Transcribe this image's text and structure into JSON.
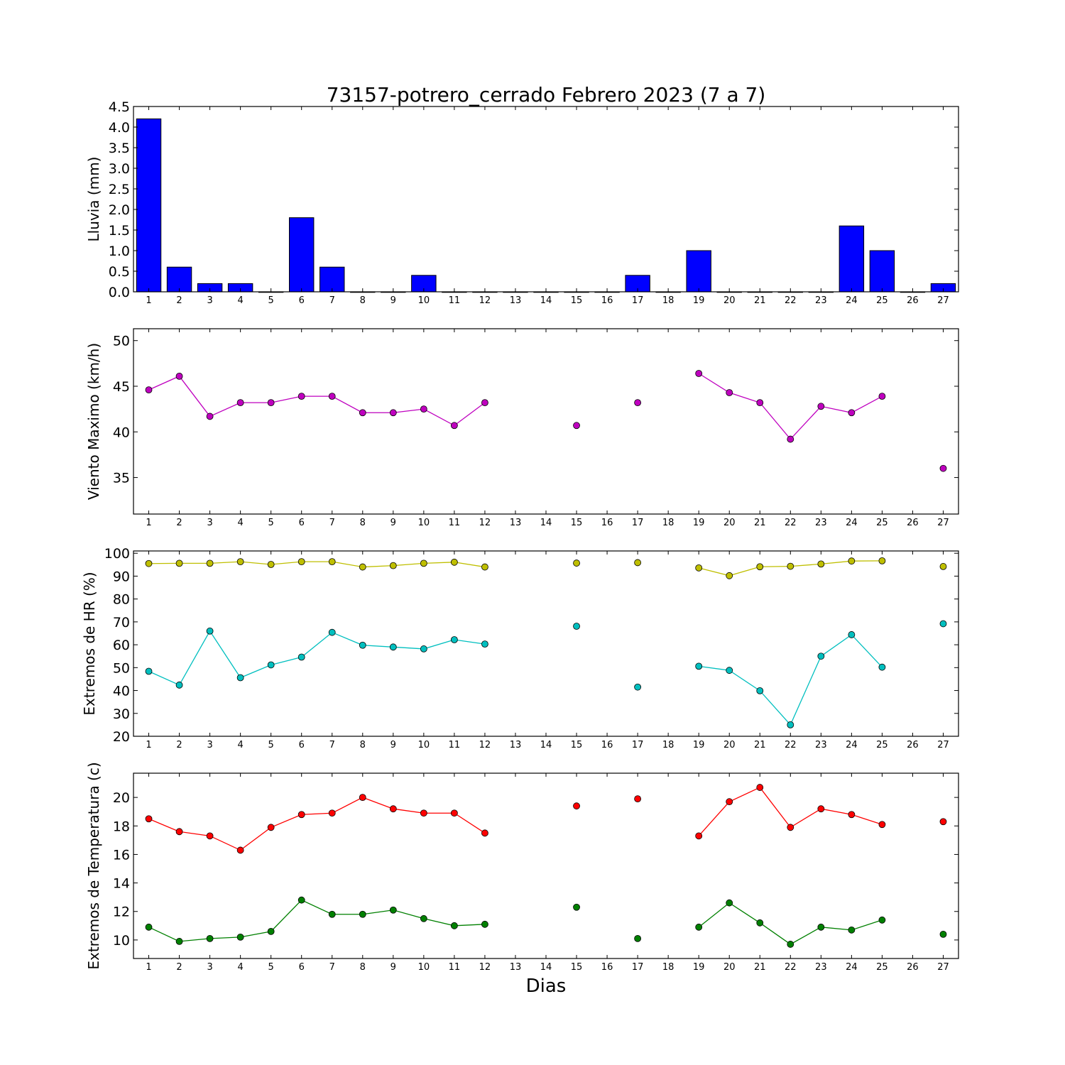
{
  "figure": {
    "title": "73157-potrero_cerrado Febrero 2023  (7 a 7)",
    "xlabel": "Dias"
  },
  "chart_data": [
    {
      "type": "bar",
      "name": "lluvia",
      "ylabel": "Lluvia (mm)",
      "ylim": [
        0,
        4.5
      ],
      "yticks": [
        "0.0",
        "0.5",
        "1.0",
        "1.5",
        "2.0",
        "2.5",
        "3.0",
        "3.5",
        "4.0",
        "4.5"
      ],
      "xlim": [
        0.5,
        27.5
      ],
      "x": [
        1,
        2,
        3,
        4,
        5,
        6,
        7,
        8,
        9,
        10,
        11,
        12,
        13,
        14,
        15,
        16,
        17,
        18,
        19,
        20,
        21,
        22,
        23,
        24,
        25,
        26,
        27
      ],
      "color": "#0000ff",
      "values": [
        4.2,
        0.6,
        0.2,
        0.2,
        0,
        1.8,
        0.6,
        0,
        0,
        0.4,
        0,
        0,
        0,
        0,
        0,
        0,
        0.4,
        0,
        1.0,
        0,
        0,
        0,
        0,
        1.6,
        1.0,
        0,
        0.2
      ]
    },
    {
      "type": "line",
      "name": "viento",
      "ylabel": "Viento Maximo (km/h)",
      "ylim": [
        31,
        51.3
      ],
      "yticks": [
        "35",
        "40",
        "45",
        "50"
      ],
      "xlim": [
        0.5,
        27.5
      ],
      "series": [
        {
          "color": "#bf00bf",
          "points": [
            [
              1,
              44.6
            ],
            [
              2,
              46.1
            ],
            [
              3,
              41.7
            ],
            [
              4,
              43.2
            ],
            [
              5,
              43.2
            ],
            [
              6,
              43.9
            ],
            [
              7,
              43.9
            ],
            [
              8,
              42.1
            ],
            [
              9,
              42.1
            ],
            [
              10,
              42.5
            ],
            [
              11,
              40.7
            ],
            [
              12,
              43.2
            ],
            [
              13,
              null
            ],
            [
              14,
              null
            ],
            [
              15,
              40.7
            ],
            [
              16,
              null
            ],
            [
              17,
              43.2
            ],
            [
              18,
              null
            ],
            [
              19,
              46.4
            ],
            [
              20,
              44.3
            ],
            [
              21,
              43.2
            ],
            [
              22,
              39.2
            ],
            [
              23,
              42.8
            ],
            [
              24,
              42.1
            ],
            [
              25,
              43.9
            ],
            [
              26,
              null
            ],
            [
              27,
              36.0
            ]
          ]
        }
      ]
    },
    {
      "type": "line",
      "name": "humedad",
      "ylabel": "Extremos de HR (%)",
      "ylim": [
        20,
        101
      ],
      "yticks": [
        "20",
        "30",
        "40",
        "50",
        "60",
        "70",
        "80",
        "90",
        "100"
      ],
      "xlim": [
        0.5,
        27.5
      ],
      "series": [
        {
          "color": "#bfbf00",
          "points": [
            [
              1,
              95.5
            ],
            [
              2,
              95.6
            ],
            [
              3,
              95.6
            ],
            [
              4,
              96.3
            ],
            [
              5,
              95.1
            ],
            [
              6,
              96.3
            ],
            [
              7,
              96.3
            ],
            [
              8,
              94
            ],
            [
              9,
              94.6
            ],
            [
              10,
              95.6
            ],
            [
              11,
              96.1
            ],
            [
              12,
              94
            ],
            [
              13,
              null
            ],
            [
              14,
              null
            ],
            [
              15,
              95.7
            ],
            [
              16,
              null
            ],
            [
              17,
              95.9
            ],
            [
              18,
              null
            ],
            [
              19,
              93.6
            ],
            [
              20,
              90.2
            ],
            [
              21,
              94.1
            ],
            [
              22,
              94.3
            ],
            [
              23,
              95.3
            ],
            [
              24,
              96.6
            ],
            [
              25,
              96.7
            ],
            [
              26,
              null
            ],
            [
              27,
              94.2
            ]
          ]
        },
        {
          "color": "#00bfbf",
          "points": [
            [
              1,
              48.4
            ],
            [
              2,
              42.4
            ],
            [
              3,
              66
            ],
            [
              4,
              45.6
            ],
            [
              5,
              51.2
            ],
            [
              6,
              54.6
            ],
            [
              7,
              65.4
            ],
            [
              8,
              59.8
            ],
            [
              9,
              59
            ],
            [
              10,
              58.2
            ],
            [
              11,
              62.2
            ],
            [
              12,
              60.3
            ],
            [
              13,
              null
            ],
            [
              14,
              null
            ],
            [
              15,
              68.1
            ],
            [
              16,
              null
            ],
            [
              17,
              41.5
            ],
            [
              18,
              null
            ],
            [
              19,
              50.6
            ],
            [
              20,
              48.8
            ],
            [
              21,
              39.9
            ],
            [
              22,
              25
            ],
            [
              23,
              55
            ],
            [
              24,
              64.4
            ],
            [
              25,
              50.2
            ],
            [
              26,
              null
            ],
            [
              27,
              69.2
            ]
          ]
        }
      ]
    },
    {
      "type": "line",
      "name": "temperatura",
      "ylabel": "Extremos de Temperatura (c)",
      "ylim": [
        8.7,
        21.7
      ],
      "yticks": [
        "10",
        "12",
        "14",
        "16",
        "18",
        "20"
      ],
      "xlim": [
        0.5,
        27.5
      ],
      "series": [
        {
          "color": "#ff0000",
          "points": [
            [
              1,
              18.5
            ],
            [
              2,
              17.6
            ],
            [
              3,
              17.3
            ],
            [
              4,
              16.3
            ],
            [
              5,
              17.9
            ],
            [
              6,
              18.8
            ],
            [
              7,
              18.9
            ],
            [
              8,
              20
            ],
            [
              9,
              19.2
            ],
            [
              10,
              18.9
            ],
            [
              11,
              18.9
            ],
            [
              12,
              17.5
            ],
            [
              13,
              null
            ],
            [
              14,
              null
            ],
            [
              15,
              19.4
            ],
            [
              16,
              null
            ],
            [
              17,
              19.9
            ],
            [
              18,
              null
            ],
            [
              19,
              17.3
            ],
            [
              20,
              19.7
            ],
            [
              21,
              20.7
            ],
            [
              22,
              17.9
            ],
            [
              23,
              19.2
            ],
            [
              24,
              18.8
            ],
            [
              25,
              18.1
            ],
            [
              26,
              null
            ],
            [
              27,
              18.3
            ]
          ]
        },
        {
          "color": "#008000",
          "points": [
            [
              1,
              10.9
            ],
            [
              2,
              9.9
            ],
            [
              3,
              10.1
            ],
            [
              4,
              10.2
            ],
            [
              5,
              10.6
            ],
            [
              6,
              12.8
            ],
            [
              7,
              11.8
            ],
            [
              8,
              11.8
            ],
            [
              9,
              12.1
            ],
            [
              10,
              11.5
            ],
            [
              11,
              11
            ],
            [
              12,
              11.1
            ],
            [
              13,
              null
            ],
            [
              14,
              null
            ],
            [
              15,
              12.3
            ],
            [
              16,
              null
            ],
            [
              17,
              10.1
            ],
            [
              18,
              null
            ],
            [
              19,
              10.9
            ],
            [
              20,
              12.6
            ],
            [
              21,
              11.2
            ],
            [
              22,
              9.7
            ],
            [
              23,
              10.9
            ],
            [
              24,
              10.7
            ],
            [
              25,
              11.4
            ],
            [
              26,
              null
            ],
            [
              27,
              10.4
            ]
          ]
        }
      ]
    }
  ]
}
